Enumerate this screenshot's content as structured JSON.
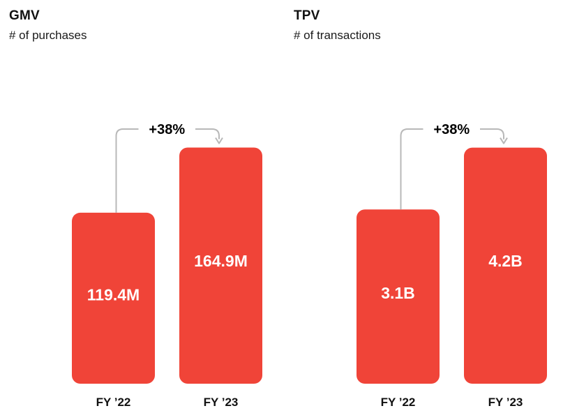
{
  "colors": {
    "bar": "#f04438",
    "connector": "#b8b8b8",
    "text": "#111111"
  },
  "chart_data": [
    {
      "type": "bar",
      "title": "GMV",
      "subtitle": "# of purchases",
      "categories": [
        "FY ’22",
        "FY ’23"
      ],
      "values": [
        119.4,
        164.9
      ],
      "value_labels": [
        "119.4M",
        "164.9M"
      ],
      "unit": "M",
      "growth_label": "+38%",
      "ylim": [
        0,
        190
      ],
      "grid": false,
      "legend": "none"
    },
    {
      "type": "bar",
      "title": "TPV",
      "subtitle": "# of transactions",
      "categories": [
        "FY ’22",
        "FY ’23"
      ],
      "values": [
        3.1,
        4.2
      ],
      "value_labels": [
        "3.1B",
        "4.2B"
      ],
      "unit": "B",
      "growth_label": "+38%",
      "ylim": [
        0,
        4.84
      ],
      "grid": false,
      "legend": "none"
    }
  ]
}
